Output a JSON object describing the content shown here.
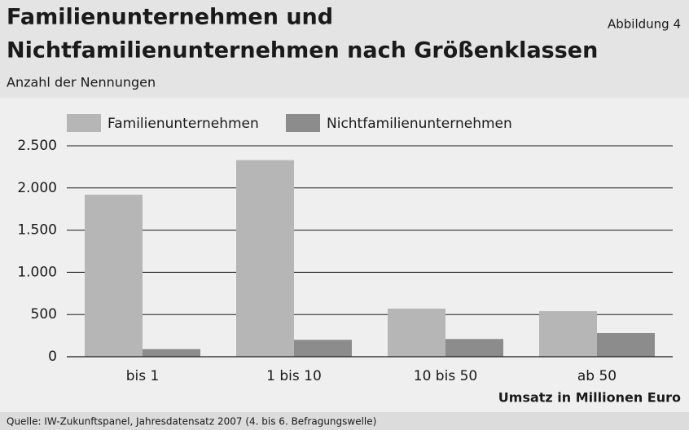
{
  "chart_data": {
    "type": "bar",
    "title_lines": [
      "Familienunternehmen und",
      "Nichtfamilienunternehmen nach Größenklassen"
    ],
    "annotation": "Abbildung 4",
    "subtitle": "Anzahl der Nennungen",
    "x_label": "Umsatz in Millionen Euro",
    "source": "Quelle: IW-Zukunftspanel, Jahresdatensatz 2007 (4. bis 6. Befragungswelle)",
    "categories": [
      "bis 1",
      "1 bis 10",
      "10 bis 50",
      "ab 50"
    ],
    "series": [
      {
        "name": "Familienunternehmen",
        "color": "#b6b6b6",
        "values": [
          1920,
          2330,
          570,
          540
        ]
      },
      {
        "name": "Nichtfamilienunternehmen",
        "color": "#8c8c8c",
        "values": [
          90,
          200,
          210,
          280
        ]
      }
    ],
    "ylim": [
      0,
      2500
    ],
    "yticks": [
      0,
      500,
      {
        "value": 1000,
        "label": "1.000"
      },
      {
        "value": 1500,
        "label": "1.500"
      },
      {
        "value": 2000,
        "label": "2.000"
      },
      {
        "value": 2500,
        "label": "2.500"
      }
    ],
    "grid": true
  }
}
